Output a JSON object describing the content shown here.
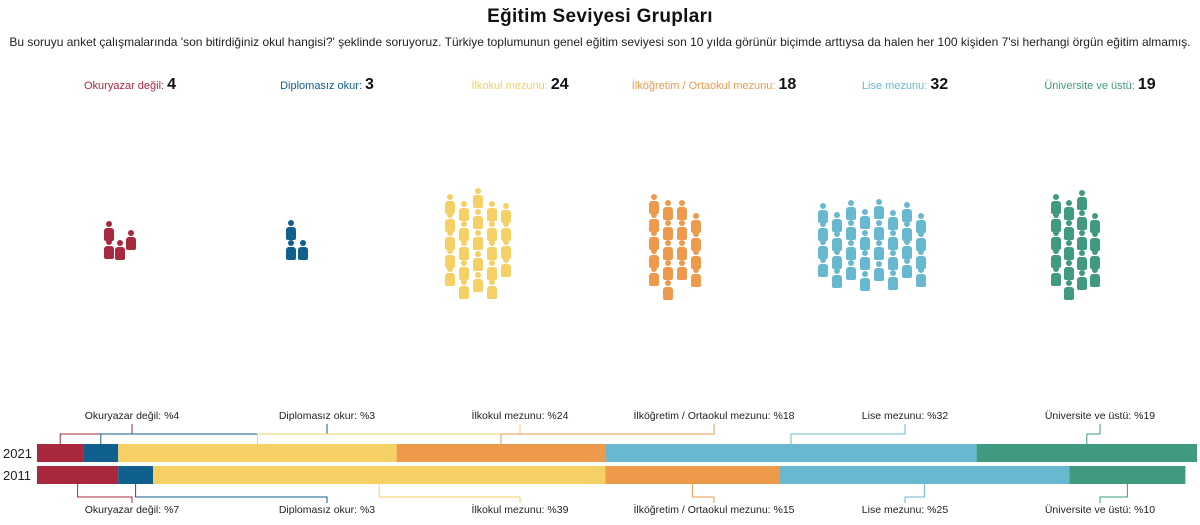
{
  "title": "Eğitim Seviyesi Grupları",
  "subtitle": "Bu soruyu anket çalışmalarında 'son bitirdiğiniz okul hangisi?' şeklinde soruyoruz. Türkiye toplumunun genel eğitim seviyesi son 10 yılda görünür biçimde arttıysa da halen her 100 kişiden 7'si herhangi örgün eğitim almamış.",
  "groups": [
    {
      "label": "Okuryazar değil:",
      "count": "4",
      "color": "#a8283e"
    },
    {
      "label": "Diplomasız okur:",
      "count": "3",
      "color": "#0f5f8f"
    },
    {
      "label": "İlkokul mezunu:",
      "count": "24",
      "color": "#f5d165"
    },
    {
      "label": "İlköğretim / Ortaokul mezunu:",
      "count": "18",
      "color": "#ee9a4d"
    },
    {
      "label": "Lise mezunu:",
      "count": "32",
      "color": "#68b9cf"
    },
    {
      "label": "Üniversite ve üstü:",
      "count": "19",
      "color": "#3f9a80"
    }
  ],
  "chart_data": {
    "type": "bar",
    "orientation": "horizontal-stacked-100",
    "categories": [
      "2021",
      "2011"
    ],
    "series": [
      {
        "name": "Okuryazar değil",
        "values": [
          4,
          7
        ],
        "labels": [
          "Okuryazar değil: %4",
          "Okuryazar değil: %7"
        ],
        "color": "#a8283e"
      },
      {
        "name": "Diplomasız okur",
        "values": [
          3,
          3
        ],
        "labels": [
          "Diplomasız okur: %3",
          "Diplomasız okur: %3"
        ],
        "color": "#0f5f8f"
      },
      {
        "name": "İlkokul mezunu",
        "values": [
          24,
          39
        ],
        "labels": [
          "İlkokul mezunu: %24",
          "İlkokul mezunu: %39"
        ],
        "color": "#f5d165"
      },
      {
        "name": "İlköğretim / Ortaokul mezunu",
        "values": [
          18,
          15
        ],
        "labels": [
          "İlköğretim / Ortaokul mezunu: %18",
          "İlköğretim / Ortaokul mezunu: %15"
        ],
        "color": "#ee9a4d"
      },
      {
        "name": "Lise mezunu",
        "values": [
          32,
          25
        ],
        "labels": [
          "Lise mezunu: %32",
          "Lise mezunu: %25"
        ],
        "color": "#68b9cf"
      },
      {
        "name": "Üniversite ve üstü",
        "values": [
          19,
          10
        ],
        "labels": [
          "Üniversite ve üstü: %19",
          "Üniversite ve üstü: %10"
        ],
        "color": "#3f9a80"
      }
    ],
    "xlim": [
      0,
      100
    ],
    "legend": "none"
  }
}
